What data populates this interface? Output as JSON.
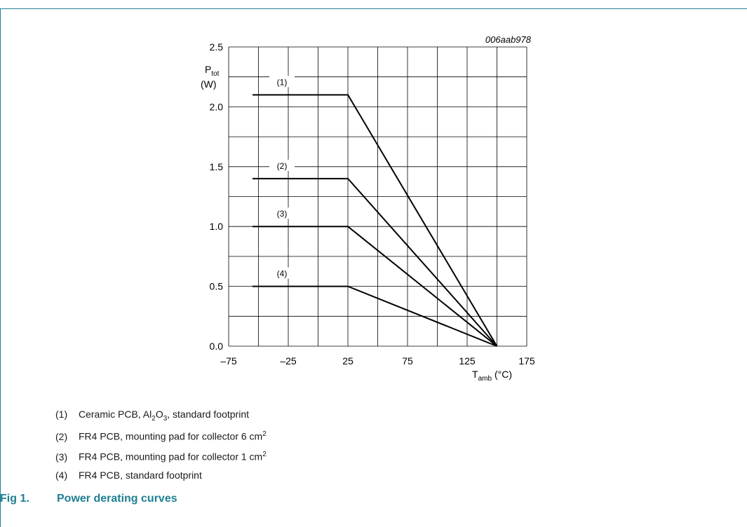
{
  "chart_data": {
    "type": "line",
    "figure_id": "006aab978",
    "ylabel_main": "P",
    "ylabel_sub": "tot",
    "ylabel_unit": "(W)",
    "xlabel_main": "T",
    "xlabel_sub": "amb",
    "xlabel_unit": "(°C)",
    "xlim": [
      -75,
      175
    ],
    "ylim": [
      0.0,
      2.5
    ],
    "x_ticks": [
      "–75",
      "–25",
      "25",
      "75",
      "125",
      "175"
    ],
    "x_tick_values": [
      -75,
      -25,
      25,
      75,
      125,
      175
    ],
    "y_ticks": [
      "0.0",
      "0.5",
      "1.0",
      "1.5",
      "2.0",
      "2.5"
    ],
    "y_tick_values": [
      0,
      0.5,
      1.0,
      1.5,
      2.0,
      2.5
    ],
    "grid": true,
    "series": [
      {
        "name": "(1)",
        "x": [
          -55,
          25,
          150
        ],
        "y": [
          2.1,
          2.1,
          0
        ]
      },
      {
        "name": "(2)",
        "x": [
          -55,
          25,
          150
        ],
        "y": [
          1.4,
          1.4,
          0
        ]
      },
      {
        "name": "(3)",
        "x": [
          -55,
          25,
          150
        ],
        "y": [
          1.0,
          1.0,
          0
        ]
      },
      {
        "name": "(4)",
        "x": [
          -55,
          25,
          150
        ],
        "y": [
          0.5,
          0.5,
          0
        ]
      }
    ]
  },
  "legend": [
    {
      "num": "(1)",
      "pre": "Ceramic PCB, Al",
      "s1": "2",
      "mid": "O",
      "s2": "3",
      "post": ", standard footprint"
    },
    {
      "num": "(2)",
      "pre": "FR4 PCB, mounting pad for collector 6 cm",
      "sup": "2"
    },
    {
      "num": "(3)",
      "pre": "FR4 PCB, mounting pad for collector 1 cm",
      "sup": "2"
    },
    {
      "num": "(4)",
      "pre": "FR4 PCB, standard footprint"
    }
  ],
  "caption": {
    "fig": "Fig 1.",
    "title": "Power derating curves"
  },
  "colors": {
    "accent": "#1f7f93",
    "line": "#000000",
    "grid": "#000000"
  }
}
